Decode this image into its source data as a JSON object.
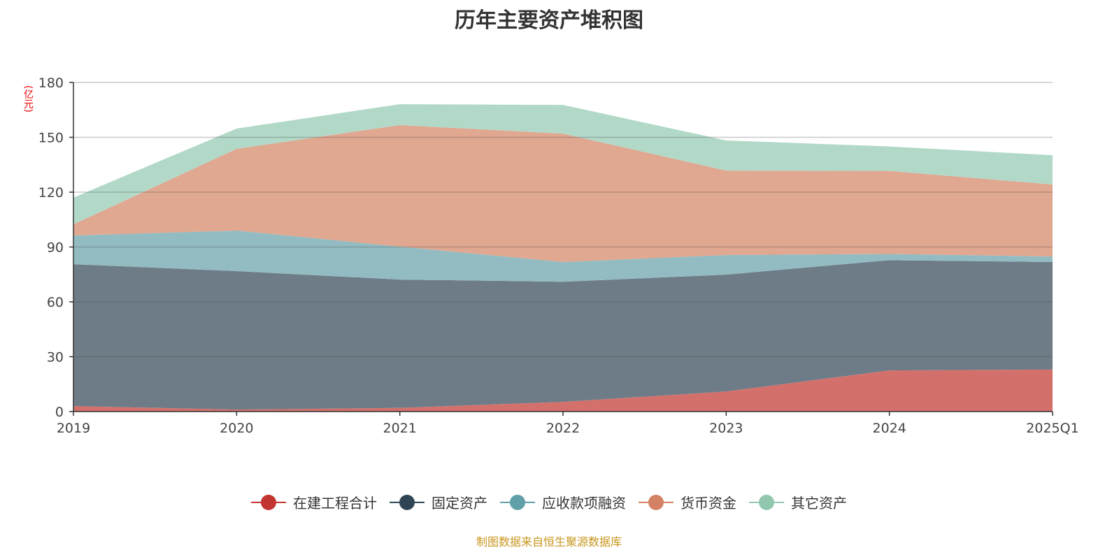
{
  "title": "历年主要资产堆积图",
  "unit_label": "(亿元)",
  "source": "制图数据来自恒生聚源数据库",
  "chart_data": {
    "type": "area",
    "stacked": true,
    "title": "历年主要资产堆积图",
    "ylabel": "(亿元)",
    "categories": [
      "2019",
      "2020",
      "2021",
      "2022",
      "2023",
      "2024",
      "2025Q1"
    ],
    "ylim": [
      0,
      180
    ],
    "yticks": [
      0,
      30,
      60,
      90,
      120,
      150,
      180
    ],
    "grid": true,
    "legend_position": "bottom",
    "series": [
      {
        "name": "在建工程合计",
        "color": "#c23531",
        "fill": "#d4706c",
        "values": [
          3.0,
          1.1,
          2.0,
          5.3,
          11.0,
          22.5,
          23.0
        ]
      },
      {
        "name": "固定资产",
        "color": "#2f4554",
        "fill": "#6e7c87",
        "values": [
          77.6,
          75.7,
          70.2,
          65.7,
          63.9,
          60.3,
          58.8
        ]
      },
      {
        "name": "应收款项融资",
        "color": "#61a0a8",
        "fill": "#92bcc2",
        "values": [
          15.7,
          22.2,
          18.0,
          10.8,
          10.7,
          3.4,
          3.0
        ]
      },
      {
        "name": "货币资金",
        "color": "#d48265",
        "fill": "#e0a791",
        "values": [
          6.1,
          44.7,
          66.5,
          70.2,
          46.2,
          45.4,
          39.4
        ]
      },
      {
        "name": "其它资产",
        "color": "#91c7ae",
        "fill": "#b2d9c8",
        "values": [
          14.6,
          11.1,
          11.4,
          15.7,
          16.5,
          13.4,
          16.0
        ]
      }
    ]
  }
}
